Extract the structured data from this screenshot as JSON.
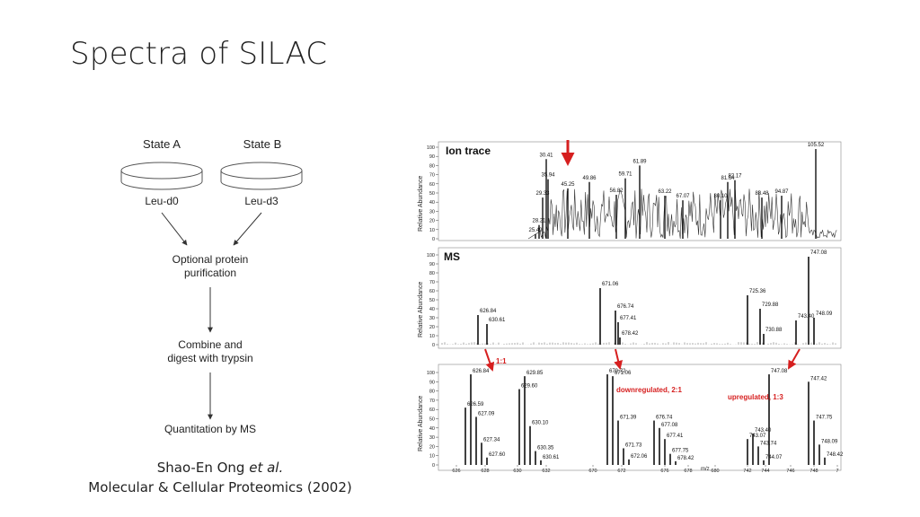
{
  "slide": {
    "title": "Spectra of SILAC",
    "caption_line1": "Shao-En Ong",
    "caption_italic": "et al.",
    "caption_line2": "Molecular & Cellular Proteomics (2002)"
  },
  "workflow": {
    "state_a": "State  A",
    "state_b": "State  B",
    "label_a": "Leu-d0",
    "label_b": "Leu-d3",
    "step1_line1": "Optional protein",
    "step1_line2": "purification",
    "step2_line1": "Combine and",
    "step2_line2": "digest with trypsin",
    "step3": "Quantitation by MS"
  },
  "panels": {
    "ion_trace_title": "Ion trace",
    "ms_title": "MS",
    "ylabel": "Relative Abundance",
    "ratio_11": "1:1",
    "ratio_down": "downregulated, 2:1",
    "ratio_up": "upregulated, 1:3",
    "mz_label": "m/z"
  },
  "chart_data": [
    {
      "type": "line",
      "title": "Ion trace",
      "ylabel": "Relative Abundance",
      "ylim": [
        0,
        100
      ],
      "yticks": [
        0,
        10,
        20,
        30,
        40,
        50,
        60,
        70,
        80,
        90,
        100
      ],
      "peaks": [
        {
          "label": "25.49",
          "y": 5
        },
        {
          "label": "28.21",
          "y": 15
        },
        {
          "label": "29.33",
          "y": 45
        },
        {
          "label": "30.41",
          "y": 87
        },
        {
          "label": "35.94",
          "y": 65
        },
        {
          "label": "45.25",
          "y": 55
        },
        {
          "label": "49.86",
          "y": 62
        },
        {
          "label": "56.82",
          "y": 48
        },
        {
          "label": "59.71",
          "y": 66
        },
        {
          "label": "61.89",
          "y": 80
        },
        {
          "label": "63.22",
          "y": 47
        },
        {
          "label": "67.07",
          "y": 42
        },
        {
          "label": "80.10",
          "y": 42
        },
        {
          "label": "81.64",
          "y": 62
        },
        {
          "label": "82.17",
          "y": 64
        },
        {
          "label": "88.48",
          "y": 45
        },
        {
          "label": "94.87",
          "y": 47
        },
        {
          "label": "105.52",
          "y": 98
        }
      ]
    },
    {
      "type": "bar",
      "title": "MS",
      "ylabel": "Relative Abundance",
      "ylim": [
        0,
        100
      ],
      "yticks": [
        0,
        10,
        20,
        30,
        40,
        50,
        60,
        70,
        80,
        90,
        100
      ],
      "peaks": [
        {
          "label": "626.84",
          "y": 33
        },
        {
          "label": "630.61",
          "y": 23
        },
        {
          "label": "671.06",
          "y": 63
        },
        {
          "label": "676.74",
          "y": 38
        },
        {
          "label": "677.41",
          "y": 25
        },
        {
          "label": "678.42",
          "y": 8
        },
        {
          "label": "725.36",
          "y": 55
        },
        {
          "label": "729.88",
          "y": 40
        },
        {
          "label": "730.88",
          "y": 12
        },
        {
          "label": "743.40",
          "y": 27
        },
        {
          "label": "747.08",
          "y": 98
        },
        {
          "label": "748.09",
          "y": 30
        }
      ]
    },
    {
      "type": "bar",
      "ylabel": "Relative Abundance",
      "ylim": [
        0,
        100
      ],
      "yticks": [
        0,
        10,
        20,
        30,
        40,
        50,
        60,
        70,
        80,
        90,
        100
      ],
      "xticks": [
        "626",
        "628",
        "630",
        "632",
        "670",
        "672",
        "676",
        "678",
        "680",
        "742",
        "744",
        "746",
        "748",
        "7"
      ],
      "peaks": [
        {
          "label": "626.59",
          "y": 62
        },
        {
          "label": "626.84",
          "y": 98
        },
        {
          "label": "627.09",
          "y": 52
        },
        {
          "label": "627.34",
          "y": 24
        },
        {
          "label": "627.60",
          "y": 8
        },
        {
          "label": "629.60",
          "y": 82
        },
        {
          "label": "629.85",
          "y": 96
        },
        {
          "label": "630.10",
          "y": 42
        },
        {
          "label": "630.35",
          "y": 15
        },
        {
          "label": "630.61",
          "y": 5
        },
        {
          "label": "670.72",
          "y": 98
        },
        {
          "label": "671.06",
          "y": 96
        },
        {
          "label": "671.39",
          "y": 48
        },
        {
          "label": "671.73",
          "y": 18
        },
        {
          "label": "672.06",
          "y": 6
        },
        {
          "label": "676.74",
          "y": 48
        },
        {
          "label": "677.08",
          "y": 40
        },
        {
          "label": "677.41",
          "y": 28
        },
        {
          "label": "677.75",
          "y": 12
        },
        {
          "label": "678.42",
          "y": 4
        },
        {
          "label": "743.07",
          "y": 28
        },
        {
          "label": "743.40",
          "y": 34
        },
        {
          "label": "743.74",
          "y": 20
        },
        {
          "label": "744.07",
          "y": 5
        },
        {
          "label": "747.08",
          "y": 98
        },
        {
          "label": "747.42",
          "y": 90
        },
        {
          "label": "747.75",
          "y": 48
        },
        {
          "label": "748.09",
          "y": 22
        },
        {
          "label": "748.42",
          "y": 8
        }
      ]
    }
  ]
}
